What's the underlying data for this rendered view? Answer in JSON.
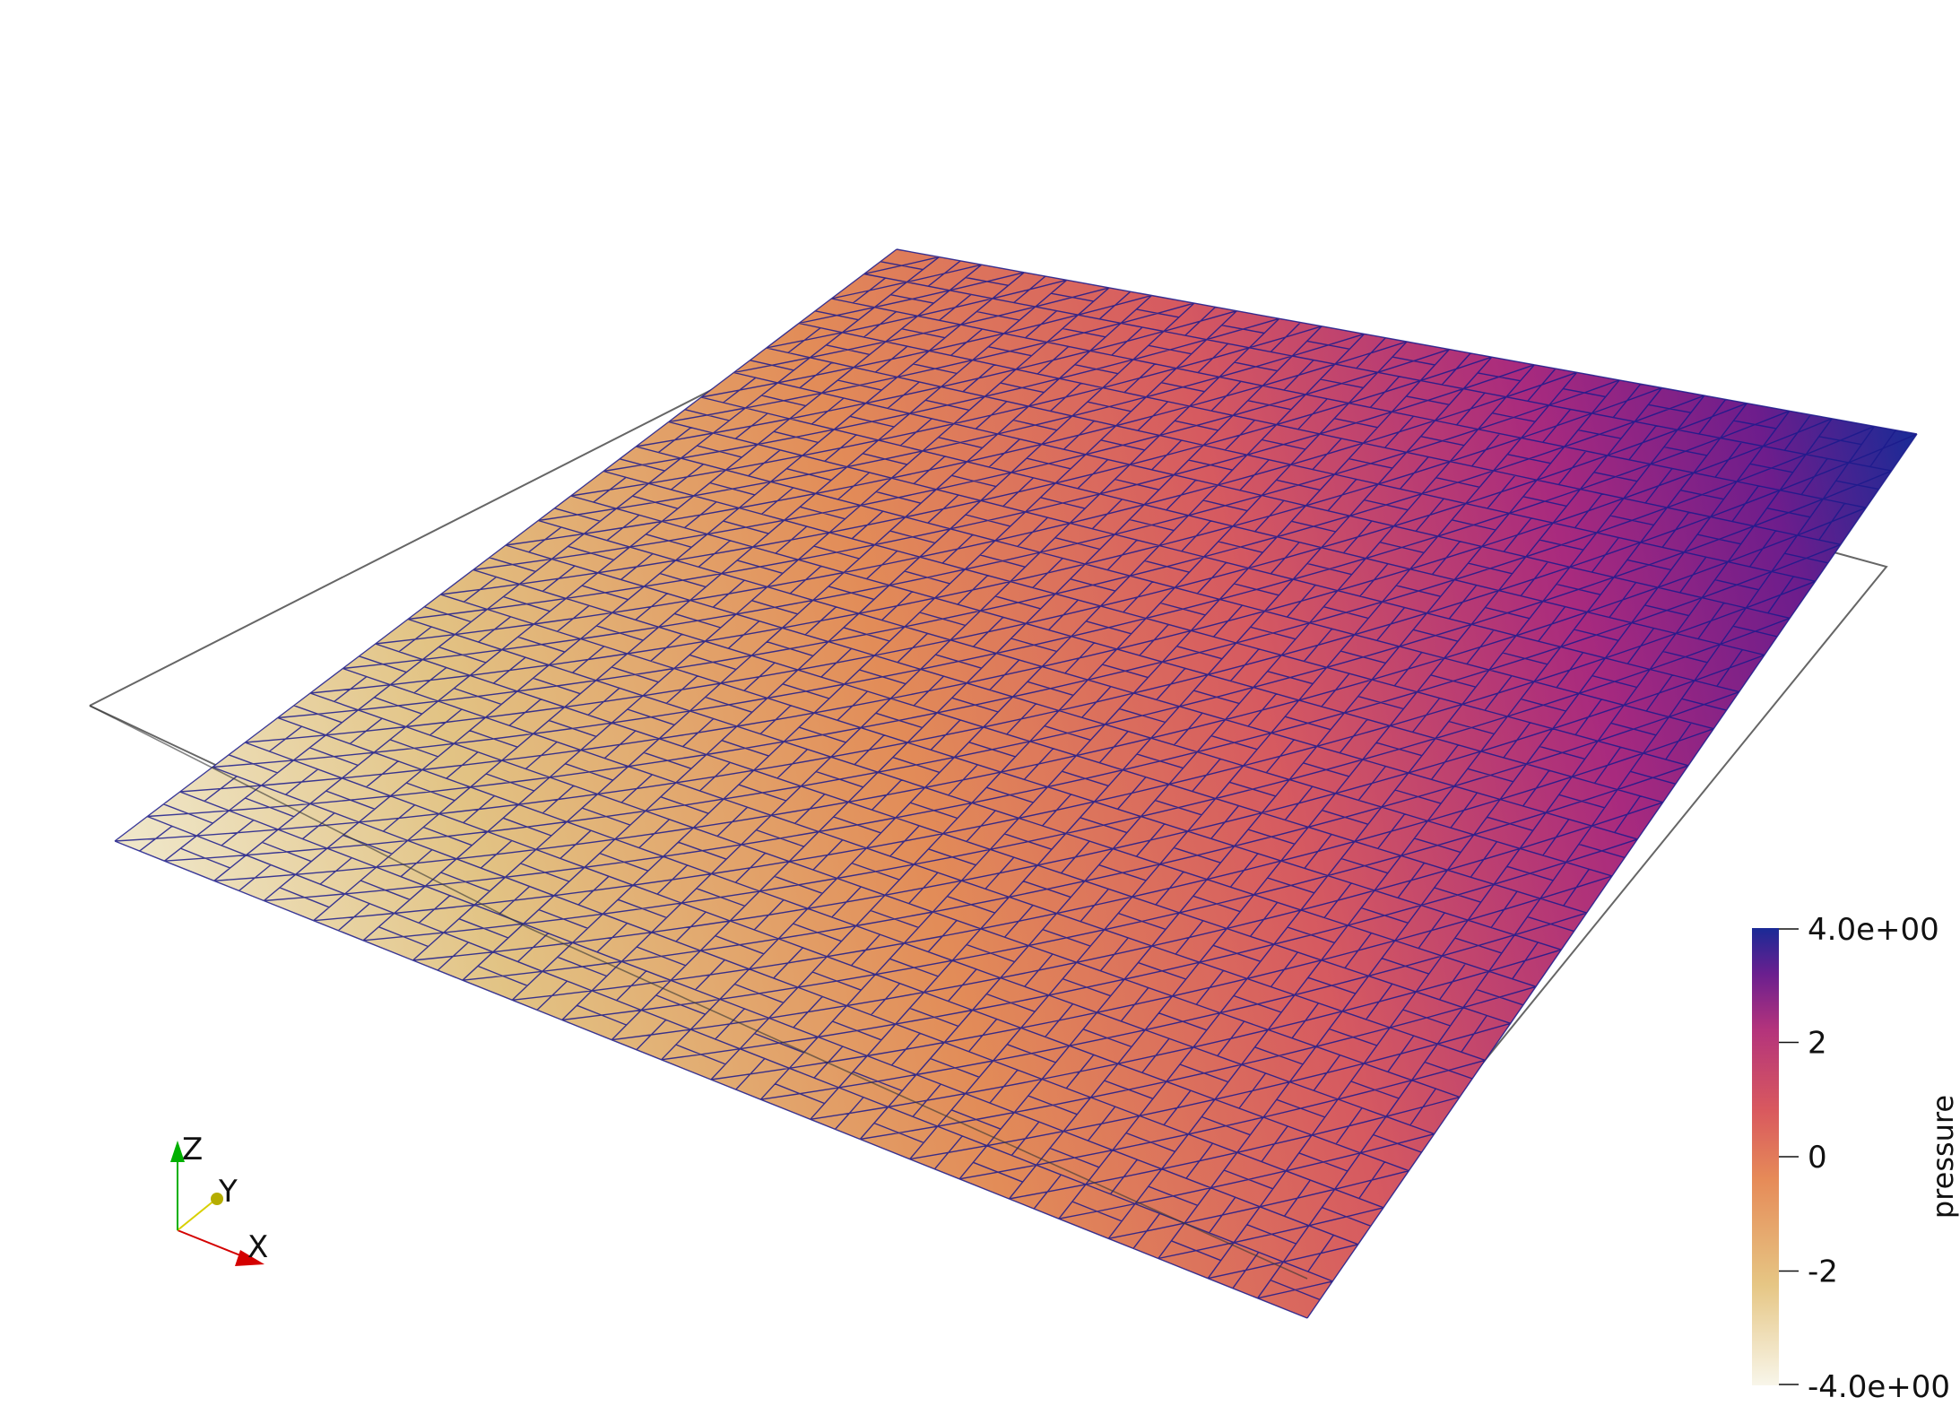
{
  "scalar_bar": {
    "title": "pressure",
    "max_label": "4.0e+00",
    "min_label": "-4.0e+00",
    "ticks": [
      {
        "value": 2,
        "label": "2"
      },
      {
        "value": 0,
        "label": "0"
      },
      {
        "value": -2,
        "label": "-2"
      }
    ],
    "range": [
      -4.0,
      4.0
    ],
    "colormap": [
      "#f3efd8",
      "#e3c27f",
      "#e48855",
      "#d95a5c",
      "#b3337a",
      "#7f1d8a",
      "#1a2a96"
    ]
  },
  "orientation_axes": {
    "x_label": "X",
    "y_label": "Y",
    "z_label": "Z",
    "x_color": "#d40000",
    "y_color": "#d8d000",
    "z_color": "#00b000"
  },
  "colors": {
    "mesh_edges": "#1a1a8c",
    "outline": "#555555"
  }
}
